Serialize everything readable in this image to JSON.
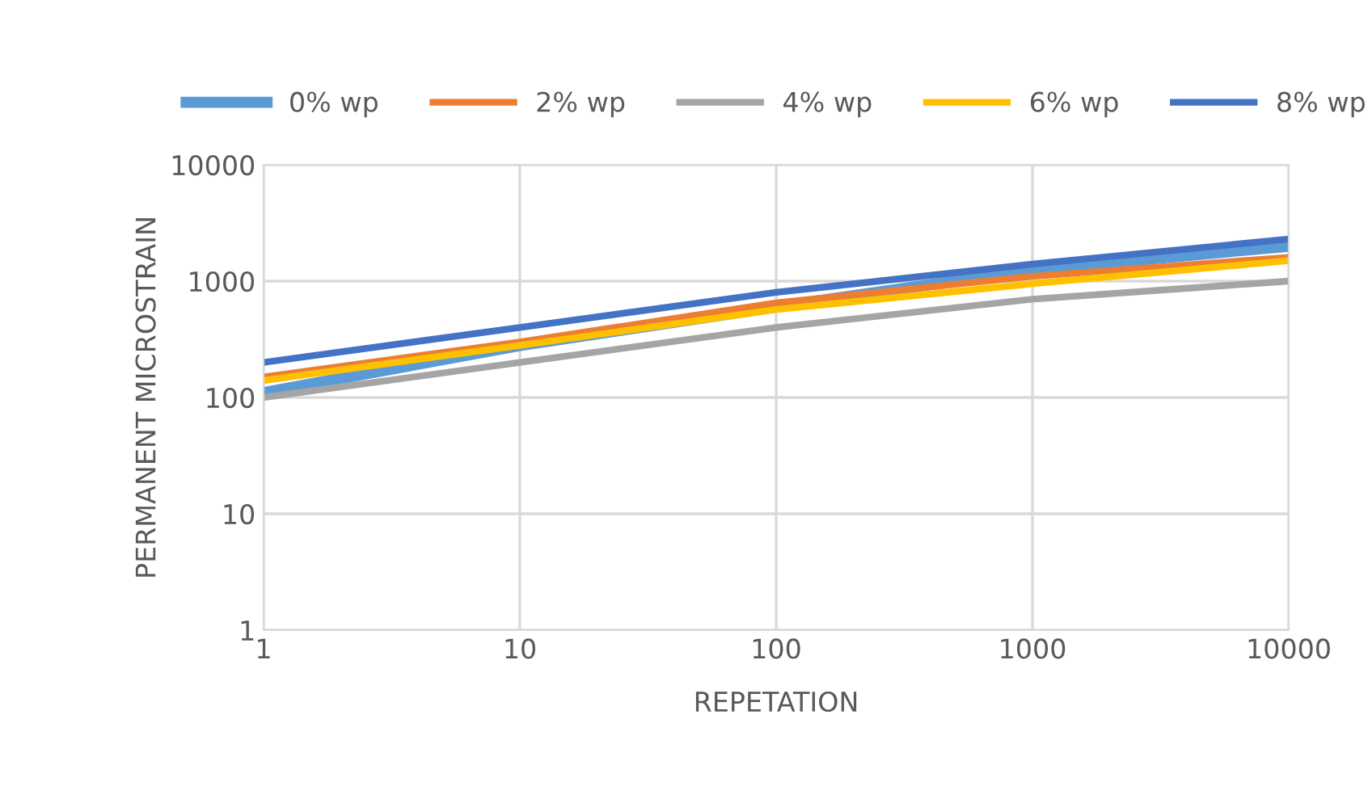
{
  "chart_data": {
    "type": "line",
    "xlabel": "REPETATION",
    "ylabel": "PERMANENT MICROSTRAIN",
    "x": [
      1,
      10,
      100,
      1000,
      10000
    ],
    "series": [
      {
        "name": "0% wp",
        "color": "#5b9bd5",
        "values": [
          110,
          280,
          600,
          1250,
          2000
        ]
      },
      {
        "name": "2% wp",
        "color": "#ed7d31",
        "values": [
          150,
          300,
          650,
          1100,
          1600
        ]
      },
      {
        "name": "4% wp",
        "color": "#a5a5a5",
        "values": [
          100,
          200,
          400,
          700,
          1000
        ]
      },
      {
        "name": "6% wp",
        "color": "#ffc000",
        "values": [
          140,
          280,
          570,
          950,
          1500
        ]
      },
      {
        "name": "8% wp",
        "color": "#4472c4",
        "values": [
          200,
          400,
          800,
          1400,
          2300
        ]
      }
    ],
    "log": "xy",
    "xlim": [
      1,
      10000
    ],
    "ylim": [
      1,
      10000
    ],
    "xticks": [
      1,
      10,
      100,
      1000,
      10000
    ],
    "yticks": [
      1,
      10,
      100,
      1000,
      10000
    ],
    "grid": true,
    "legend": "top",
    "marker": "none",
    "line_style": "solid"
  }
}
